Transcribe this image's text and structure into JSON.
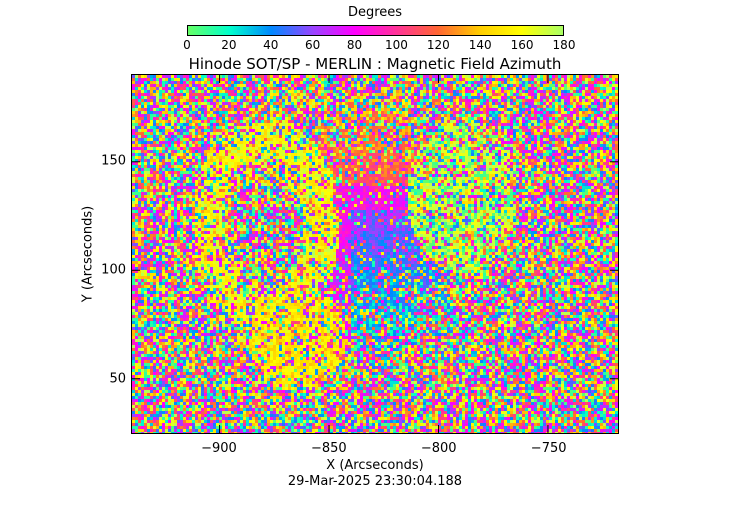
{
  "colorbar": {
    "title": "Degrees",
    "ticks": [
      "0",
      "20",
      "40",
      "60",
      "80",
      "100",
      "120",
      "140",
      "160",
      "180"
    ],
    "range": [
      0,
      180
    ]
  },
  "title": "Hinode SOT/SP - MERLIN : Magnetic Field Azimuth",
  "x_axis": {
    "label": "X (Arcseconds)",
    "range": [
      -940,
      -718
    ],
    "ticks": [
      -900,
      -850,
      -800,
      -750
    ],
    "tick_labels": [
      "−900",
      "−850",
      "−800",
      "−750"
    ]
  },
  "y_axis": {
    "label": "Y (Arcseconds)",
    "range": [
      25,
      190
    ],
    "ticks": [
      50,
      100,
      150
    ],
    "tick_labels": [
      "50",
      "100",
      "150"
    ]
  },
  "timestamp": "29-Mar-2025 23:30:04.188",
  "colors": {
    "background": "#ffffff",
    "axis": "#000000",
    "colormap": [
      "#66ff66",
      "#00ffcc",
      "#0088ff",
      "#9944ff",
      "#ff00ff",
      "#ff3399",
      "#ff6633",
      "#ffcc00",
      "#ffff00",
      "#aaff66"
    ]
  }
}
